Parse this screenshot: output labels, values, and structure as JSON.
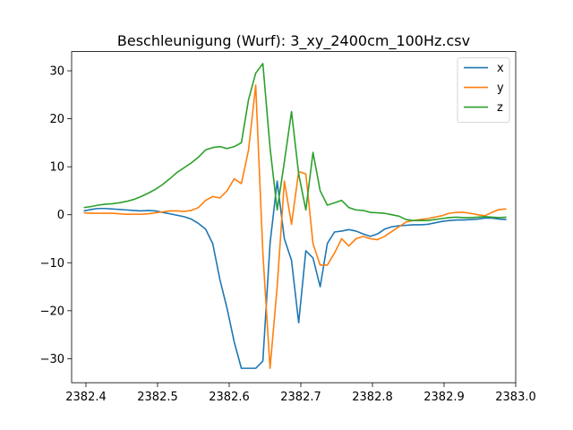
{
  "chart_data": {
    "type": "line",
    "title": "Beschleunigung (Wurf): 3_xy_2400cm_100Hz.csv",
    "xlabel": "",
    "ylabel": "",
    "xlim": [
      2382.38,
      2383.0
    ],
    "ylim": [
      -35,
      34
    ],
    "xticks": [
      2382.4,
      2382.5,
      2382.6,
      2382.7,
      2382.8,
      2382.9,
      2383.0
    ],
    "xtick_labels": [
      "2382.4",
      "2382.5",
      "2382.6",
      "2382.7",
      "2382.8",
      "2382.9",
      "2383.0"
    ],
    "yticks": [
      -30,
      -20,
      -10,
      0,
      10,
      20,
      30
    ],
    "ytick_labels": [
      "−30",
      "−20",
      "−10",
      "0",
      "10",
      "20",
      "30"
    ],
    "grid": false,
    "legend_position": "top-right",
    "x": [
      2382.397,
      2382.407,
      2382.417,
      2382.427,
      2382.437,
      2382.447,
      2382.457,
      2382.467,
      2382.477,
      2382.487,
      2382.497,
      2382.507,
      2382.517,
      2382.527,
      2382.537,
      2382.547,
      2382.557,
      2382.567,
      2382.577,
      2382.587,
      2382.597,
      2382.607,
      2382.617,
      2382.627,
      2382.637,
      2382.647,
      2382.657,
      2382.667,
      2382.677,
      2382.687,
      2382.697,
      2382.707,
      2382.717,
      2382.727,
      2382.737,
      2382.747,
      2382.757,
      2382.767,
      2382.777,
      2382.787,
      2382.797,
      2382.807,
      2382.817,
      2382.827,
      2382.837,
      2382.847,
      2382.857,
      2382.867,
      2382.877,
      2382.887,
      2382.897,
      2382.907,
      2382.917,
      2382.927,
      2382.937,
      2382.947,
      2382.957,
      2382.967,
      2382.977,
      2382.987
    ],
    "series": [
      {
        "name": "x",
        "color": "#1f77b4",
        "values": [
          0.8,
          1.1,
          1.3,
          1.3,
          1.2,
          1.1,
          1.0,
          0.9,
          0.8,
          0.9,
          0.8,
          0.5,
          0.2,
          -0.1,
          -0.4,
          -0.9,
          -1.8,
          -3.0,
          -6.0,
          -13.5,
          -19.5,
          -26.5,
          -32.0,
          -32.0,
          -32.0,
          -30.5,
          -6.0,
          7.0,
          -5.0,
          -9.5,
          -22.5,
          -7.5,
          -9.0,
          -15.0,
          -6.0,
          -3.6,
          -3.4,
          -3.1,
          -3.4,
          -4.0,
          -4.5,
          -4.0,
          -3.0,
          -2.5,
          -2.3,
          -2.2,
          -2.1,
          -2.1,
          -2.0,
          -1.7,
          -1.4,
          -1.2,
          -1.1,
          -1.1,
          -1.0,
          -0.9,
          -0.7,
          -0.7,
          -0.9,
          -1.0
        ]
      },
      {
        "name": "y",
        "color": "#ff7f0e",
        "values": [
          0.4,
          0.3,
          0.3,
          0.3,
          0.3,
          0.2,
          0.1,
          0.1,
          0.1,
          0.2,
          0.4,
          0.6,
          0.8,
          0.8,
          0.7,
          0.9,
          1.5,
          3.0,
          3.8,
          3.5,
          5.0,
          7.5,
          6.5,
          13.5,
          27.0,
          -8.0,
          -32.0,
          -15.0,
          7.0,
          -2.0,
          9.0,
          8.5,
          -6.0,
          -10.5,
          -10.5,
          -8.0,
          -5.0,
          -6.5,
          -5.0,
          -4.5,
          -5.0,
          -5.2,
          -4.5,
          -3.5,
          -2.5,
          -1.5,
          -1.2,
          -1.0,
          -0.8,
          -0.5,
          -0.2,
          0.3,
          0.5,
          0.5,
          0.3,
          0.0,
          -0.2,
          0.5,
          1.1,
          1.2
        ]
      },
      {
        "name": "z",
        "color": "#2ca02c",
        "values": [
          1.5,
          1.7,
          2.0,
          2.2,
          2.3,
          2.5,
          2.8,
          3.2,
          3.8,
          4.5,
          5.3,
          6.3,
          7.5,
          8.8,
          9.8,
          10.8,
          12.0,
          13.5,
          14.0,
          14.2,
          13.8,
          14.2,
          15.0,
          24.0,
          29.5,
          31.5,
          14.0,
          1.0,
          11.0,
          21.5,
          8.5,
          1.0,
          13.0,
          5.0,
          2.0,
          2.5,
          3.0,
          1.5,
          1.0,
          0.9,
          0.5,
          0.4,
          0.3,
          0.0,
          -0.3,
          -1.0,
          -1.2,
          -1.2,
          -1.2,
          -1.0,
          -0.8,
          -0.6,
          -0.5,
          -0.6,
          -0.6,
          -0.5,
          -0.4,
          -0.5,
          -0.6,
          -0.5
        ]
      }
    ]
  }
}
